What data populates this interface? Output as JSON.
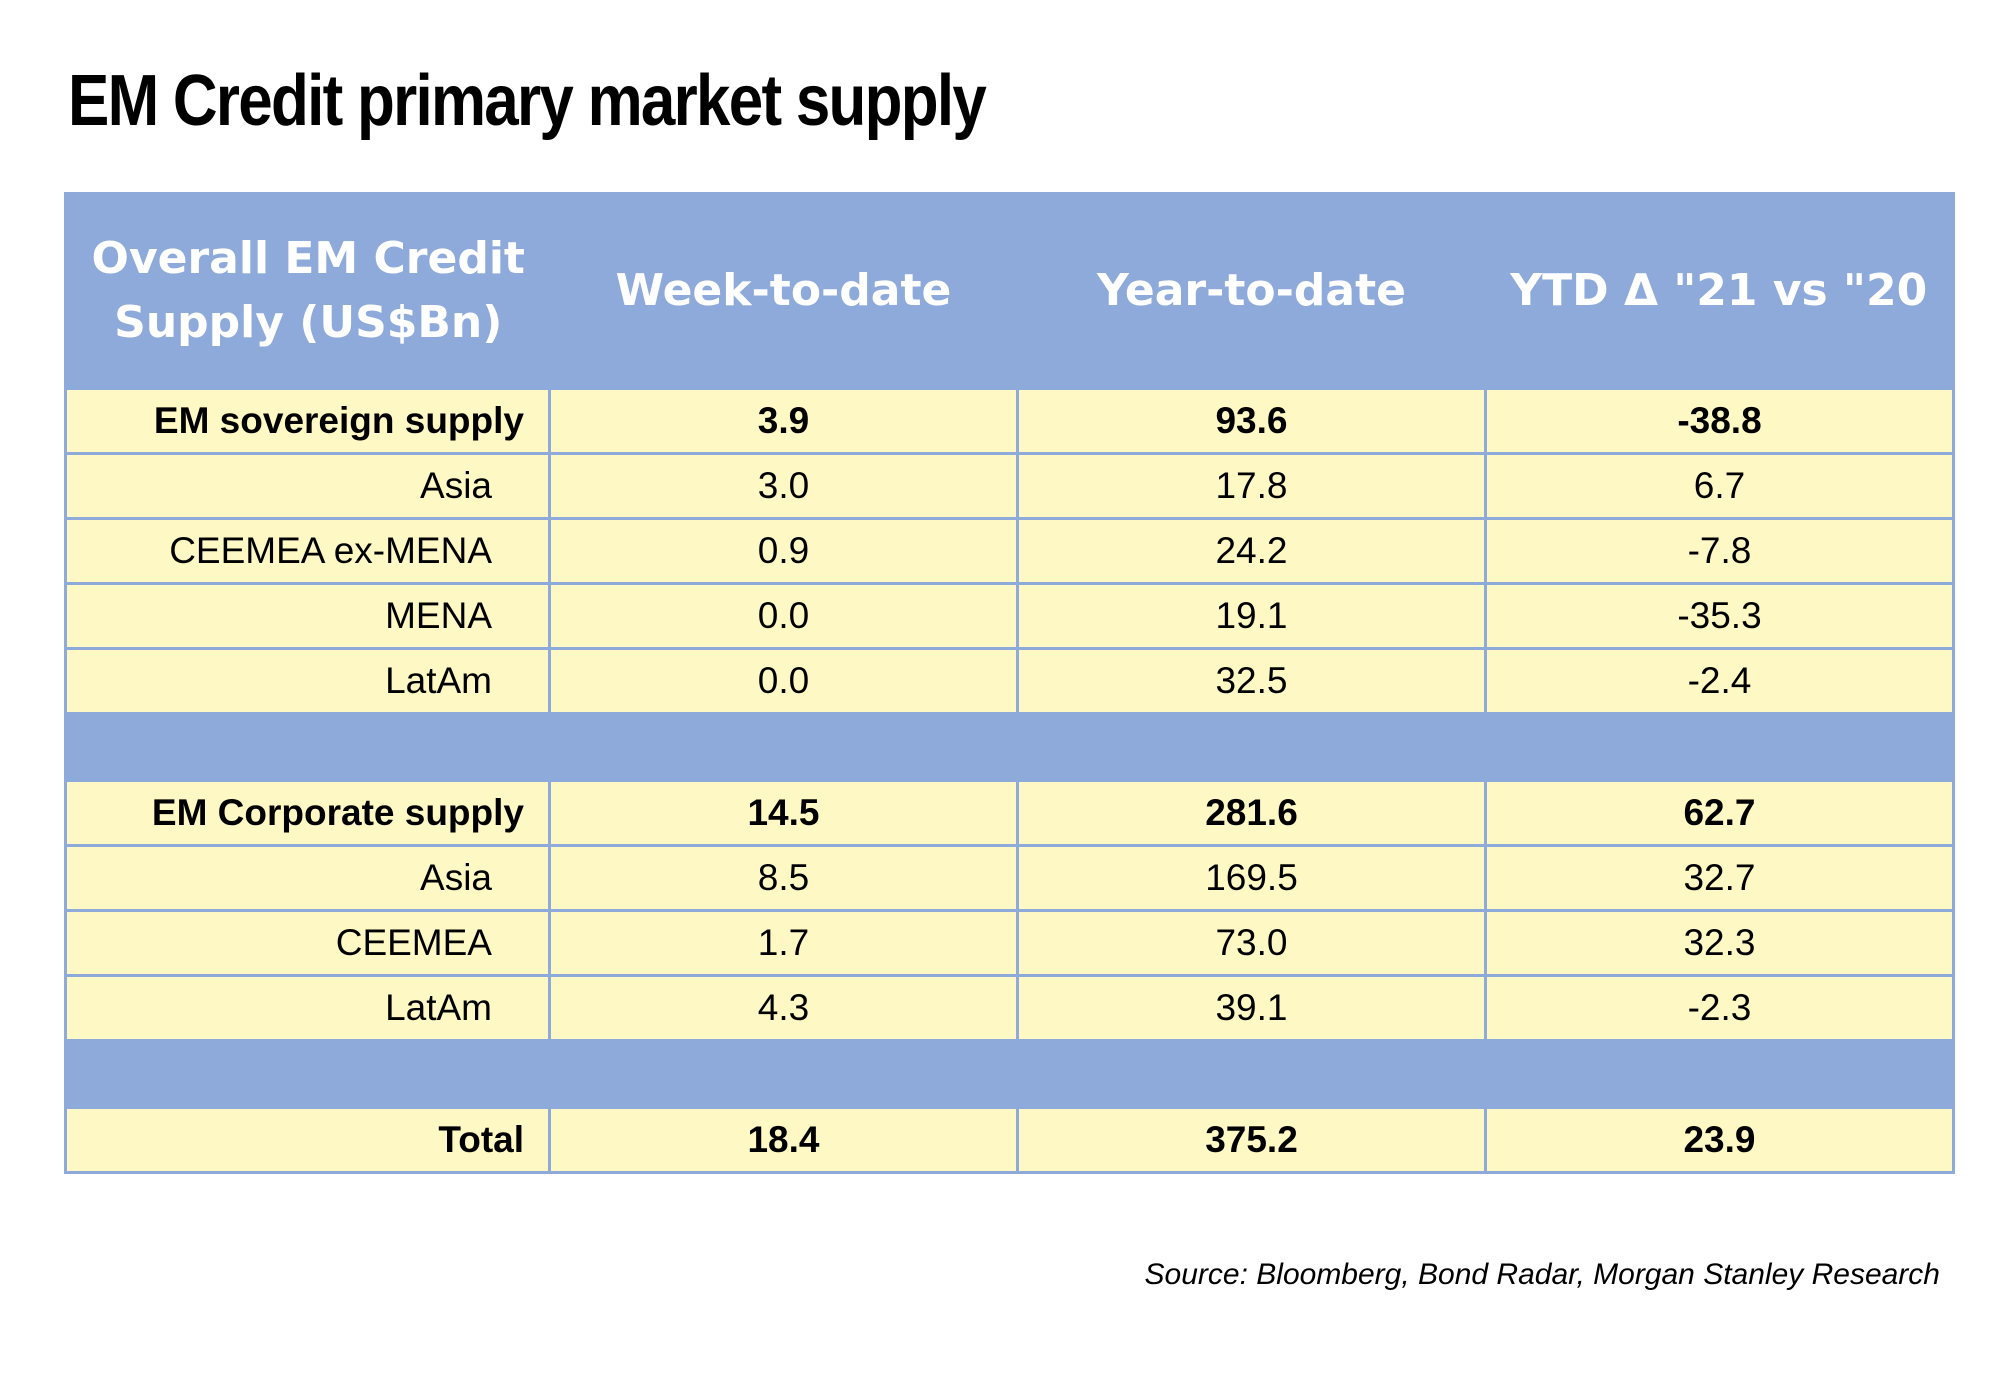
{
  "title": "EM Credit primary market supply",
  "chart_data": {
    "type": "table",
    "title": "EM Credit primary market supply",
    "columns": [
      "Overall EM Credit Supply (US$Bn)",
      "Week-to-date",
      "Year-to-date",
      "YTD Δ  \"21 vs \"20"
    ],
    "rows": [
      {
        "label": "EM sovereign supply",
        "values": [
          "3.9",
          "93.6",
          "-38.8"
        ],
        "bold": true
      },
      {
        "label": "Asia",
        "values": [
          "3.0",
          "17.8",
          "6.7"
        ],
        "bold": false
      },
      {
        "label": "CEEMEA ex-MENA",
        "values": [
          "0.9",
          "24.2",
          "-7.8"
        ],
        "bold": false
      },
      {
        "label": "MENA",
        "values": [
          "0.0",
          "19.1",
          "-35.3"
        ],
        "bold": false
      },
      {
        "label": "LatAm",
        "values": [
          "0.0",
          "32.5",
          "-2.4"
        ],
        "bold": false
      },
      {
        "spacer": true
      },
      {
        "label": "EM Corporate supply",
        "values": [
          "14.5",
          "281.6",
          "62.7"
        ],
        "bold": true
      },
      {
        "label": "Asia",
        "values": [
          "8.5",
          "169.5",
          "32.7"
        ],
        "bold": false
      },
      {
        "label": "CEEMEA",
        "values": [
          "1.7",
          "73.0",
          "32.3"
        ],
        "bold": false
      },
      {
        "label": "LatAm",
        "values": [
          "4.3",
          "39.1",
          "-2.3"
        ],
        "bold": false
      },
      {
        "spacer": true
      },
      {
        "label": "Total",
        "values": [
          "18.4",
          "375.2",
          "23.9"
        ],
        "bold": true
      }
    ]
  },
  "source": "Source: Bloomberg, Bond Radar, Morgan Stanley Research",
  "colors": {
    "header_background": "#8eaadb",
    "header_text": "#ffffff",
    "cell_background": "#fef8c4",
    "grid_line": "#8eaadb"
  }
}
